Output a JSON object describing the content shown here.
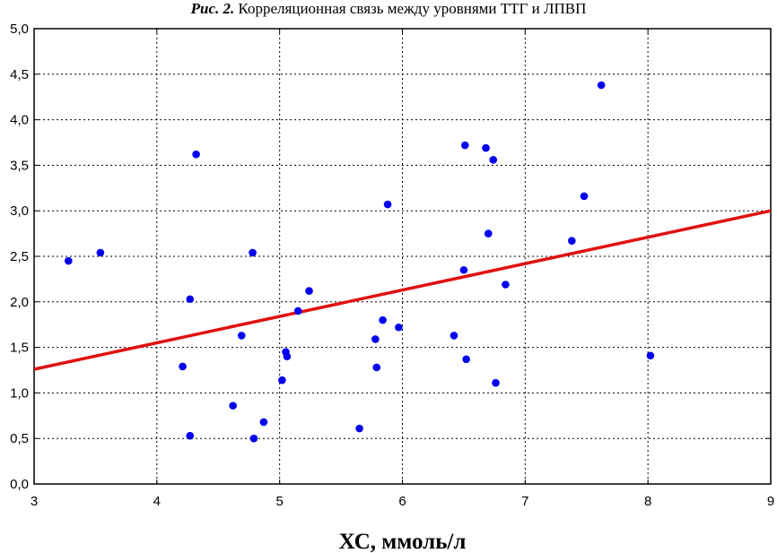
{
  "figure": {
    "title_lead": "Рис. 2.",
    "title_rest": " Корреляционная связь между уровнями ТТГ и ЛПВП"
  },
  "chart_data": {
    "type": "scatter",
    "title": "Рис. 2. Корреляционная связь между уровнями ТТГ и ЛПВП",
    "xlabel": "ХС, ммоль/л",
    "ylabel": "",
    "xlim": [
      3,
      9
    ],
    "ylim": [
      0,
      5
    ],
    "xticks": [
      3,
      4,
      5,
      6,
      7,
      8,
      9
    ],
    "yticks": [
      "0,0",
      "0,5",
      "1,0",
      "1,5",
      "2,0",
      "2,5",
      "3,0",
      "3,5",
      "4,0",
      "4,5",
      "5,0"
    ],
    "grid": "dashed",
    "colors": {
      "points": "#0000ee",
      "fit_line": "#e01010"
    },
    "series": [
      {
        "name": "points",
        "points": [
          [
            3.28,
            2.45
          ],
          [
            3.54,
            2.54
          ],
          [
            4.21,
            1.29
          ],
          [
            4.27,
            2.03
          ],
          [
            4.27,
            0.53
          ],
          [
            4.32,
            3.62
          ],
          [
            4.62,
            0.86
          ],
          [
            4.69,
            1.63
          ],
          [
            4.78,
            2.54
          ],
          [
            4.79,
            0.5
          ],
          [
            4.87,
            0.68
          ],
          [
            5.02,
            1.14
          ],
          [
            5.05,
            1.45
          ],
          [
            5.06,
            1.4
          ],
          [
            5.15,
            1.9
          ],
          [
            5.24,
            2.12
          ],
          [
            5.65,
            0.61
          ],
          [
            5.78,
            1.59
          ],
          [
            5.79,
            1.28
          ],
          [
            5.84,
            1.8
          ],
          [
            5.88,
            3.07
          ],
          [
            5.97,
            1.72
          ],
          [
            6.42,
            1.63
          ],
          [
            6.5,
            2.35
          ],
          [
            6.51,
            3.72
          ],
          [
            6.52,
            1.37
          ],
          [
            6.68,
            3.69
          ],
          [
            6.7,
            2.75
          ],
          [
            6.74,
            3.56
          ],
          [
            6.76,
            1.11
          ],
          [
            6.84,
            2.19
          ],
          [
            7.38,
            2.67
          ],
          [
            7.48,
            3.16
          ],
          [
            7.62,
            4.38
          ],
          [
            8.02,
            1.41
          ]
        ]
      }
    ],
    "fit_line": {
      "x": [
        3,
        9
      ],
      "y": [
        1.26,
        3.0
      ]
    }
  }
}
